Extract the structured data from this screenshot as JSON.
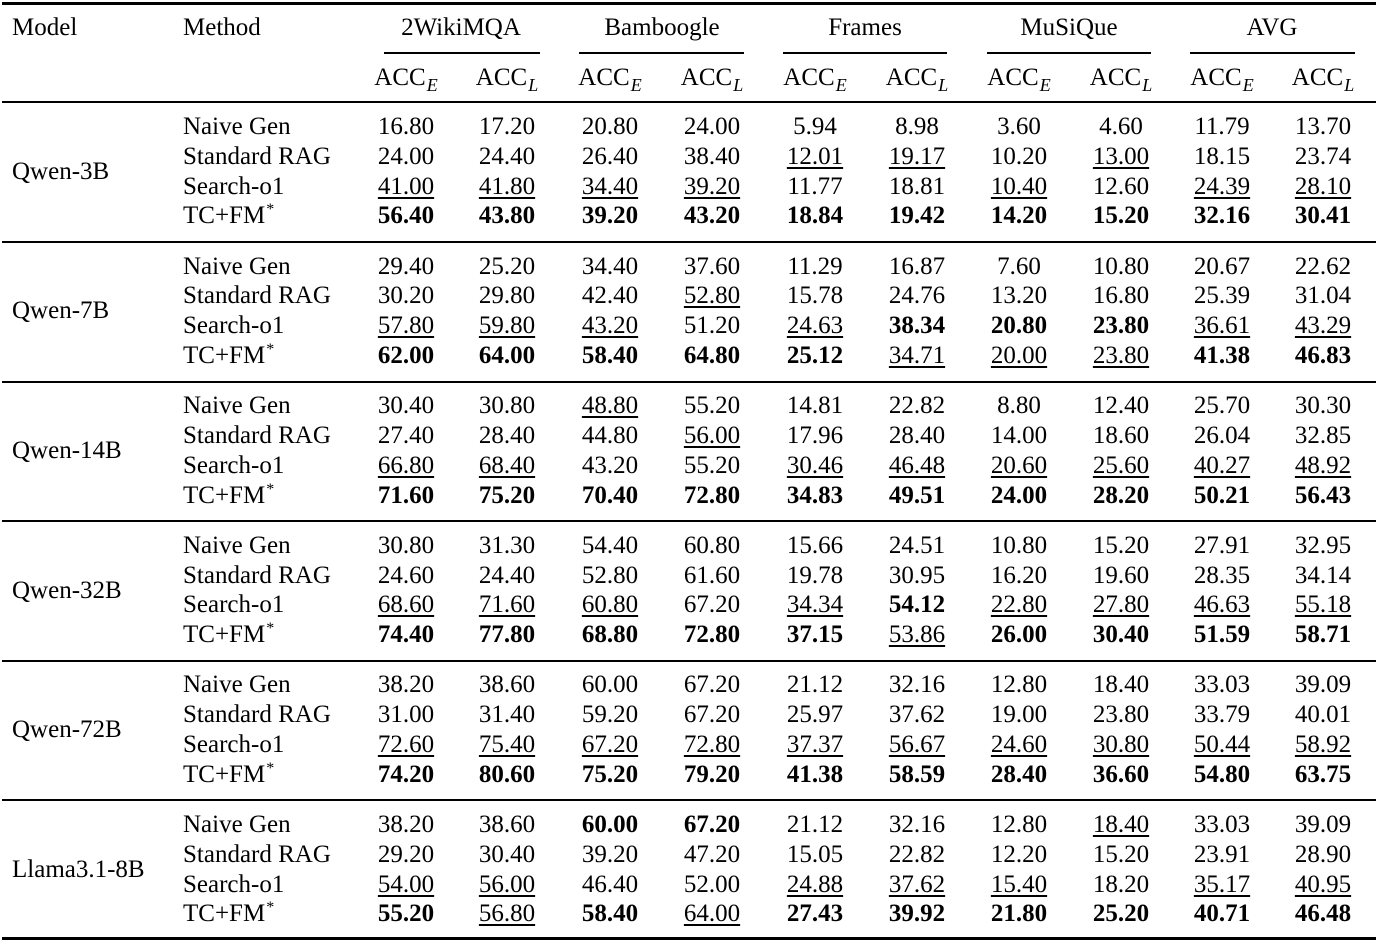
{
  "header": {
    "model_label": "Model",
    "method_label": "Method",
    "datasets": [
      "2WikiMQA",
      "Bamboogle",
      "Frames",
      "MuSiQue",
      "AVG"
    ],
    "metric_base": "ACC",
    "metric_subs": [
      "E",
      "L"
    ]
  },
  "groups": [
    {
      "model": "Qwen-3B",
      "rows": [
        {
          "method": "Naive Gen",
          "star": "",
          "values": [
            "16.80",
            "17.20",
            "20.80",
            "24.00",
            "5.94",
            "8.98",
            "3.60",
            "4.60",
            "11.79",
            "13.70"
          ],
          "bold": [],
          "underline": []
        },
        {
          "method": "Standard RAG",
          "star": "",
          "values": [
            "24.00",
            "24.40",
            "26.40",
            "38.40",
            "12.01",
            "19.17",
            "10.20",
            "13.00",
            "18.15",
            "23.74"
          ],
          "bold": [],
          "underline": [
            4,
            5,
            7
          ]
        },
        {
          "method": "Search-o1",
          "star": "",
          "values": [
            "41.00",
            "41.80",
            "34.40",
            "39.20",
            "11.77",
            "18.81",
            "10.40",
            "12.60",
            "24.39",
            "28.10"
          ],
          "bold": [],
          "underline": [
            0,
            1,
            2,
            3,
            6,
            8,
            9
          ]
        },
        {
          "method": "TC+FM",
          "star": "*",
          "values": [
            "56.40",
            "43.80",
            "39.20",
            "43.20",
            "18.84",
            "19.42",
            "14.20",
            "15.20",
            "32.16",
            "30.41"
          ],
          "bold": [
            0,
            1,
            2,
            3,
            4,
            5,
            6,
            7,
            8,
            9
          ],
          "underline": []
        }
      ]
    },
    {
      "model": "Qwen-7B",
      "rows": [
        {
          "method": "Naive Gen",
          "star": "",
          "values": [
            "29.40",
            "25.20",
            "34.40",
            "37.60",
            "11.29",
            "16.87",
            "7.60",
            "10.80",
            "20.67",
            "22.62"
          ],
          "bold": [],
          "underline": []
        },
        {
          "method": "Standard RAG",
          "star": "",
          "values": [
            "30.20",
            "29.80",
            "42.40",
            "52.80",
            "15.78",
            "24.76",
            "13.20",
            "16.80",
            "25.39",
            "31.04"
          ],
          "bold": [],
          "underline": [
            3
          ]
        },
        {
          "method": "Search-o1",
          "star": "",
          "values": [
            "57.80",
            "59.80",
            "43.20",
            "51.20",
            "24.63",
            "38.34",
            "20.80",
            "23.80",
            "36.61",
            "43.29"
          ],
          "bold": [
            5,
            6,
            7
          ],
          "underline": [
            0,
            1,
            2,
            4,
            8,
            9
          ]
        },
        {
          "method": "TC+FM",
          "star": "*",
          "values": [
            "62.00",
            "64.00",
            "58.40",
            "64.80",
            "25.12",
            "34.71",
            "20.00",
            "23.80",
            "41.38",
            "46.83"
          ],
          "bold": [
            0,
            1,
            2,
            3,
            4,
            8,
            9
          ],
          "underline": [
            5,
            6,
            7
          ]
        }
      ]
    },
    {
      "model": "Qwen-14B",
      "rows": [
        {
          "method": "Naive Gen",
          "star": "",
          "values": [
            "30.40",
            "30.80",
            "48.80",
            "55.20",
            "14.81",
            "22.82",
            "8.80",
            "12.40",
            "25.70",
            "30.30"
          ],
          "bold": [],
          "underline": [
            2
          ]
        },
        {
          "method": "Standard RAG",
          "star": "",
          "values": [
            "27.40",
            "28.40",
            "44.80",
            "56.00",
            "17.96",
            "28.40",
            "14.00",
            "18.60",
            "26.04",
            "32.85"
          ],
          "bold": [],
          "underline": [
            3
          ]
        },
        {
          "method": "Search-o1",
          "star": "",
          "values": [
            "66.80",
            "68.40",
            "43.20",
            "55.20",
            "30.46",
            "46.48",
            "20.60",
            "25.60",
            "40.27",
            "48.92"
          ],
          "bold": [],
          "underline": [
            0,
            1,
            4,
            5,
            6,
            7,
            8,
            9
          ]
        },
        {
          "method": "TC+FM",
          "star": "*",
          "values": [
            "71.60",
            "75.20",
            "70.40",
            "72.80",
            "34.83",
            "49.51",
            "24.00",
            "28.20",
            "50.21",
            "56.43"
          ],
          "bold": [
            0,
            1,
            2,
            3,
            4,
            5,
            6,
            7,
            8,
            9
          ],
          "underline": []
        }
      ]
    },
    {
      "model": "Qwen-32B",
      "rows": [
        {
          "method": "Naive Gen",
          "star": "",
          "values": [
            "30.80",
            "31.30",
            "54.40",
            "60.80",
            "15.66",
            "24.51",
            "10.80",
            "15.20",
            "27.91",
            "32.95"
          ],
          "bold": [],
          "underline": []
        },
        {
          "method": "Standard RAG",
          "star": "",
          "values": [
            "24.60",
            "24.40",
            "52.80",
            "61.60",
            "19.78",
            "30.95",
            "16.20",
            "19.60",
            "28.35",
            "34.14"
          ],
          "bold": [],
          "underline": []
        },
        {
          "method": "Search-o1",
          "star": "",
          "values": [
            "68.60",
            "71.60",
            "60.80",
            "67.20",
            "34.34",
            "54.12",
            "22.80",
            "27.80",
            "46.63",
            "55.18"
          ],
          "bold": [
            5
          ],
          "underline": [
            0,
            1,
            2,
            4,
            6,
            7,
            8,
            9
          ]
        },
        {
          "method": "TC+FM",
          "star": "*",
          "values": [
            "74.40",
            "77.80",
            "68.80",
            "72.80",
            "37.15",
            "53.86",
            "26.00",
            "30.40",
            "51.59",
            "58.71"
          ],
          "bold": [
            0,
            1,
            2,
            3,
            4,
            6,
            7,
            8,
            9
          ],
          "underline": [
            5
          ]
        }
      ]
    },
    {
      "model": "Qwen-72B",
      "rows": [
        {
          "method": "Naive Gen",
          "star": "",
          "values": [
            "38.20",
            "38.60",
            "60.00",
            "67.20",
            "21.12",
            "32.16",
            "12.80",
            "18.40",
            "33.03",
            "39.09"
          ],
          "bold": [],
          "underline": []
        },
        {
          "method": "Standard RAG",
          "star": "",
          "values": [
            "31.00",
            "31.40",
            "59.20",
            "67.20",
            "25.97",
            "37.62",
            "19.00",
            "23.80",
            "33.79",
            "40.01"
          ],
          "bold": [],
          "underline": []
        },
        {
          "method": "Search-o1",
          "star": "",
          "values": [
            "72.60",
            "75.40",
            "67.20",
            "72.80",
            "37.37",
            "56.67",
            "24.60",
            "30.80",
            "50.44",
            "58.92"
          ],
          "bold": [],
          "underline": [
            0,
            1,
            2,
            3,
            4,
            5,
            6,
            7,
            8,
            9
          ]
        },
        {
          "method": "TC+FM",
          "star": "*",
          "values": [
            "74.20",
            "80.60",
            "75.20",
            "79.20",
            "41.38",
            "58.59",
            "28.40",
            "36.60",
            "54.80",
            "63.75"
          ],
          "bold": [
            0,
            1,
            2,
            3,
            4,
            5,
            6,
            7,
            8,
            9
          ],
          "underline": []
        }
      ]
    },
    {
      "model": "Llama3.1-8B",
      "rows": [
        {
          "method": "Naive Gen",
          "star": "",
          "values": [
            "38.20",
            "38.60",
            "60.00",
            "67.20",
            "21.12",
            "32.16",
            "12.80",
            "18.40",
            "33.03",
            "39.09"
          ],
          "bold": [
            2,
            3
          ],
          "underline": [
            7
          ]
        },
        {
          "method": "Standard RAG",
          "star": "",
          "values": [
            "29.20",
            "30.40",
            "39.20",
            "47.20",
            "15.05",
            "22.82",
            "12.20",
            "15.20",
            "23.91",
            "28.90"
          ],
          "bold": [],
          "underline": []
        },
        {
          "method": "Search-o1",
          "star": "",
          "values": [
            "54.00",
            "56.00",
            "46.40",
            "52.00",
            "24.88",
            "37.62",
            "15.40",
            "18.20",
            "35.17",
            "40.95"
          ],
          "bold": [],
          "underline": [
            0,
            1,
            4,
            5,
            6,
            8,
            9
          ]
        },
        {
          "method": "TC+FM",
          "star": "*",
          "values": [
            "55.20",
            "56.80",
            "58.40",
            "64.00",
            "27.43",
            "39.92",
            "21.80",
            "25.20",
            "40.71",
            "46.48"
          ],
          "bold": [
            0,
            2,
            4,
            5,
            6,
            7,
            8,
            9
          ],
          "underline": [
            1,
            3
          ]
        }
      ]
    }
  ]
}
